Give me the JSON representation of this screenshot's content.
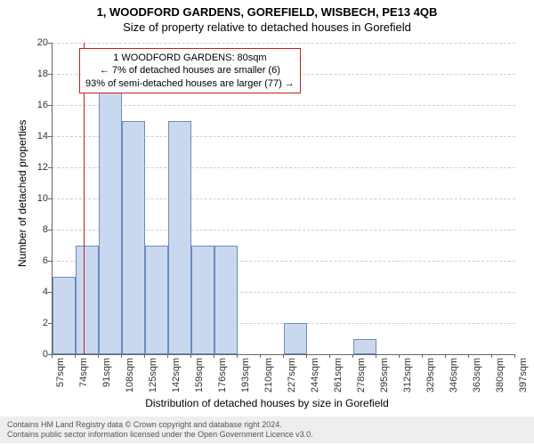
{
  "title": {
    "line1": "1, WOODFORD GARDENS, GOREFIELD, WISBECH, PE13 4QB",
    "line2": "Size of property relative to detached houses in Gorefield"
  },
  "axes": {
    "ylabel": "Number of detached properties",
    "xlabel": "Distribution of detached houses by size in Gorefield",
    "yticks": [
      0,
      2,
      4,
      6,
      8,
      10,
      12,
      14,
      16,
      18,
      20
    ],
    "ylim": [
      0,
      20
    ],
    "xtick_labels": [
      "57sqm",
      "74sqm",
      "91sqm",
      "108sqm",
      "125sqm",
      "142sqm",
      "159sqm",
      "176sqm",
      "193sqm",
      "210sqm",
      "227sqm",
      "244sqm",
      "261sqm",
      "278sqm",
      "295sqm",
      "312sqm",
      "329sqm",
      "346sqm",
      "363sqm",
      "380sqm",
      "397sqm"
    ]
  },
  "chart": {
    "type": "histogram",
    "bar_color": "#cad8ef",
    "bar_border": "#6b8bbd",
    "grid_color": "#cfcfcf",
    "background": "#ffffff",
    "values": [
      5,
      7,
      17,
      15,
      7,
      15,
      7,
      7,
      0,
      0,
      2,
      0,
      0,
      1,
      0,
      0,
      0,
      0,
      0,
      0
    ],
    "reference_line": {
      "color": "#c42020",
      "value_sqm": 80
    }
  },
  "annotation": {
    "line1": "1 WOODFORD GARDENS: 80sqm",
    "line2": "← 7% of detached houses are smaller (6)",
    "line3": "93% of semi-detached houses are larger (77) →",
    "border_color": "#c42020"
  },
  "footer": {
    "line1": "Contains HM Land Registry data © Crown copyright and database right 2024.",
    "line2": "Contains public sector information licensed under the Open Government Licence v3.0."
  }
}
